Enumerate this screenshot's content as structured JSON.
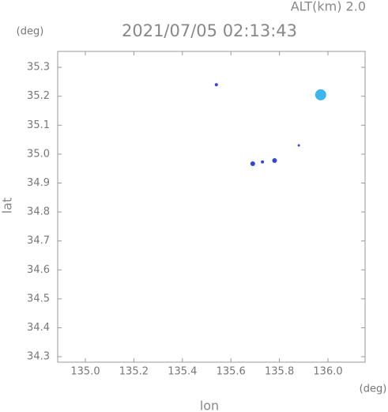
{
  "chart_data": {
    "type": "scatter",
    "title": "2021/07/05 02:13:43",
    "altitude_label": "ALT(km) 2.0",
    "xlabel": "lon",
    "ylabel": "lat",
    "x_unit": "(deg)",
    "y_unit": "(deg)",
    "x": [
      135.54,
      135.97,
      135.88,
      135.78,
      135.73,
      135.69
    ],
    "values": [
      35.24,
      35.205,
      35.03,
      34.978,
      34.973,
      34.967
    ],
    "sizes": [
      2,
      7,
      1.5,
      3,
      2,
      3
    ],
    "colors": [
      "#3346d8",
      "#3cb8ee",
      "#3346d8",
      "#3346d8",
      "#3346d8",
      "#3346d8"
    ],
    "xlim": [
      134.886,
      136.153
    ],
    "ylim": [
      34.281,
      35.355
    ],
    "xticks": [
      {
        "value": 135.0,
        "label": "135.0"
      },
      {
        "value": 135.2,
        "label": "135.2"
      },
      {
        "value": 135.4,
        "label": "135.4"
      },
      {
        "value": 135.6,
        "label": "135.6"
      },
      {
        "value": 135.8,
        "label": "135.8"
      },
      {
        "value": 136.0,
        "label": "136.0"
      }
    ],
    "yticks": [
      34.3,
      34.4,
      34.5,
      34.6,
      34.7,
      34.8,
      34.9,
      {
        "value": 35.0,
        "label": "35.0"
      },
      35.1,
      35.2,
      35.3
    ]
  }
}
